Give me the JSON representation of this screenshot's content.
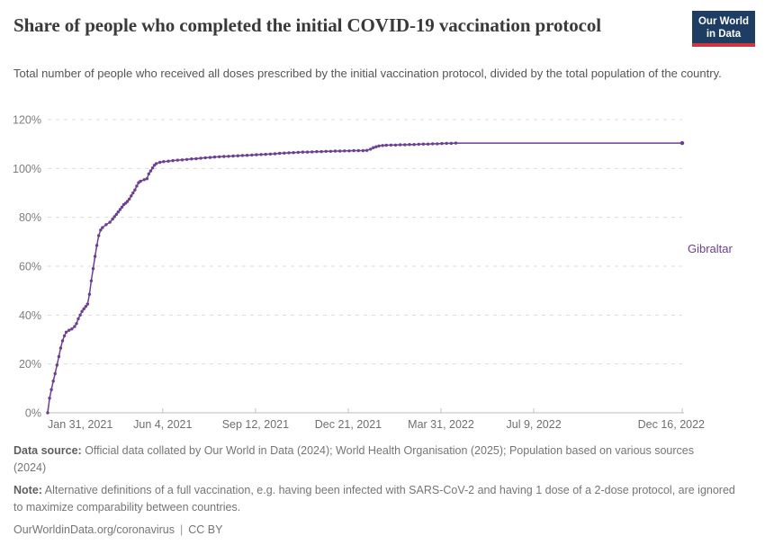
{
  "header": {
    "title": "Share of people who completed the initial COVID-19 vaccination protocol",
    "subtitle": "Total number of people who received all doses prescribed by the initial vaccination protocol, divided by the total population of the country.",
    "logo": {
      "line1": "Our World",
      "line2": "in Data",
      "bg_color": "#1d3d63",
      "stripe_color": "#d1353c"
    }
  },
  "chart_data": {
    "type": "line",
    "title": "Share of people who completed the initial COVID-19 vaccination protocol",
    "xlabel": "",
    "ylabel": "",
    "ylim": [
      0,
      120
    ],
    "y_ticks": [
      0,
      20,
      40,
      60,
      80,
      100,
      120
    ],
    "y_tick_suffix": "%",
    "grid": true,
    "grid_color": "#dcdcdc",
    "axis_color": "#bcbcbc",
    "tick_label_color": "#6f6f6f",
    "legend_position": "end-of-line-label",
    "x_domain_days": [
      0,
      684
    ],
    "x_tick_days": [
      0,
      124,
      224,
      324,
      424,
      524,
      684
    ],
    "x_tick_labels": [
      "Jan 31, 2021",
      "Jun 4, 2021",
      "Sep 12, 2021",
      "Dec 21, 2021",
      "Mar 31, 2022",
      "Jul 9, 2022",
      "Dec 16, 2022"
    ],
    "series": [
      {
        "name": "Gibraltar",
        "color": "#6d3e91",
        "points": [
          [
            0,
            0
          ],
          [
            2,
            6
          ],
          [
            4,
            9.5
          ],
          [
            6,
            13
          ],
          [
            8,
            16
          ],
          [
            10,
            19.5
          ],
          [
            12,
            23
          ],
          [
            14,
            26.5
          ],
          [
            16,
            29.5
          ],
          [
            18,
            31.5
          ],
          [
            20,
            33
          ],
          [
            23,
            33.8
          ],
          [
            26,
            34.3
          ],
          [
            29,
            35.3
          ],
          [
            31,
            36.5
          ],
          [
            33,
            38.5
          ],
          [
            35,
            40
          ],
          [
            37,
            41.5
          ],
          [
            39,
            42.5
          ],
          [
            41,
            43.5
          ],
          [
            43,
            44.5
          ],
          [
            45,
            48.5
          ],
          [
            47,
            54
          ],
          [
            49,
            59
          ],
          [
            51,
            64
          ],
          [
            53,
            68.5
          ],
          [
            55,
            72.5
          ],
          [
            57,
            74.8
          ],
          [
            59,
            75.8
          ],
          [
            63,
            77
          ],
          [
            67,
            78
          ],
          [
            70,
            79.3
          ],
          [
            72,
            80.3
          ],
          [
            74,
            81.2
          ],
          [
            76,
            82.2
          ],
          [
            78,
            83.2
          ],
          [
            80,
            84.2
          ],
          [
            82,
            85.2
          ],
          [
            84,
            85.8
          ],
          [
            86,
            86.5
          ],
          [
            88,
            87.5
          ],
          [
            90,
            88.8
          ],
          [
            92,
            90
          ],
          [
            94,
            91.2
          ],
          [
            96,
            92.8
          ],
          [
            98,
            94.2
          ],
          [
            100,
            94.8
          ],
          [
            104,
            95.4
          ],
          [
            107,
            95.8
          ],
          [
            109,
            97.8
          ],
          [
            111,
            99
          ],
          [
            113,
            100.2
          ],
          [
            115,
            101.3
          ],
          [
            117,
            102
          ],
          [
            121,
            102.5
          ],
          [
            125,
            102.8
          ],
          [
            130,
            103
          ],
          [
            135,
            103.2
          ],
          [
            140,
            103.4
          ],
          [
            145,
            103.5
          ],
          [
            150,
            103.7
          ],
          [
            155,
            103.9
          ],
          [
            160,
            104
          ],
          [
            165,
            104.2
          ],
          [
            170,
            104.4
          ],
          [
            175,
            104.5
          ],
          [
            180,
            104.7
          ],
          [
            185,
            104.8
          ],
          [
            190,
            104.9
          ],
          [
            195,
            105
          ],
          [
            200,
            105.1
          ],
          [
            205,
            105.2
          ],
          [
            210,
            105.3
          ],
          [
            215,
            105.4
          ],
          [
            220,
            105.5
          ],
          [
            225,
            105.6
          ],
          [
            230,
            105.7
          ],
          [
            235,
            105.8
          ],
          [
            240,
            105.9
          ],
          [
            245,
            106
          ],
          [
            250,
            106.2
          ],
          [
            255,
            106.3
          ],
          [
            260,
            106.4
          ],
          [
            265,
            106.5
          ],
          [
            270,
            106.6
          ],
          [
            275,
            106.7
          ],
          [
            280,
            106.7
          ],
          [
            285,
            106.8
          ],
          [
            290,
            106.9
          ],
          [
            295,
            106.9
          ],
          [
            300,
            107
          ],
          [
            305,
            107
          ],
          [
            310,
            107.1
          ],
          [
            315,
            107.1
          ],
          [
            320,
            107.2
          ],
          [
            325,
            107.2
          ],
          [
            330,
            107.3
          ],
          [
            335,
            107.3
          ],
          [
            340,
            107.3
          ],
          [
            344,
            107.4
          ],
          [
            348,
            107.9
          ],
          [
            351,
            108.5
          ],
          [
            354,
            108.9
          ],
          [
            357,
            109.2
          ],
          [
            361,
            109.4
          ],
          [
            365,
            109.5
          ],
          [
            370,
            109.6
          ],
          [
            375,
            109.6
          ],
          [
            380,
            109.7
          ],
          [
            385,
            109.7
          ],
          [
            390,
            109.8
          ],
          [
            395,
            109.8
          ],
          [
            400,
            109.9
          ],
          [
            405,
            110
          ],
          [
            410,
            110
          ],
          [
            415,
            110.1
          ],
          [
            420,
            110.1
          ],
          [
            425,
            110.2
          ],
          [
            430,
            110.3
          ],
          [
            435,
            110.3
          ],
          [
            440,
            110.4
          ],
          [
            684,
            110.4
          ]
        ]
      }
    ]
  },
  "footer": {
    "data_source_label": "Data source:",
    "data_source_text": " Official data collated by Our World in Data (2024); World Health Organisation (2025); Population based on various sources (2024)",
    "note_label": "Note:",
    "note_text": " Alternative definitions of a full vaccination, e.g. having been infected with SARS-CoV-2 and having 1 dose of a 2-dose protocol, are ignored to maximize comparability between countries.",
    "link": "OurWorldinData.org/coronavirus",
    "separator": "|",
    "license": "CC BY"
  }
}
